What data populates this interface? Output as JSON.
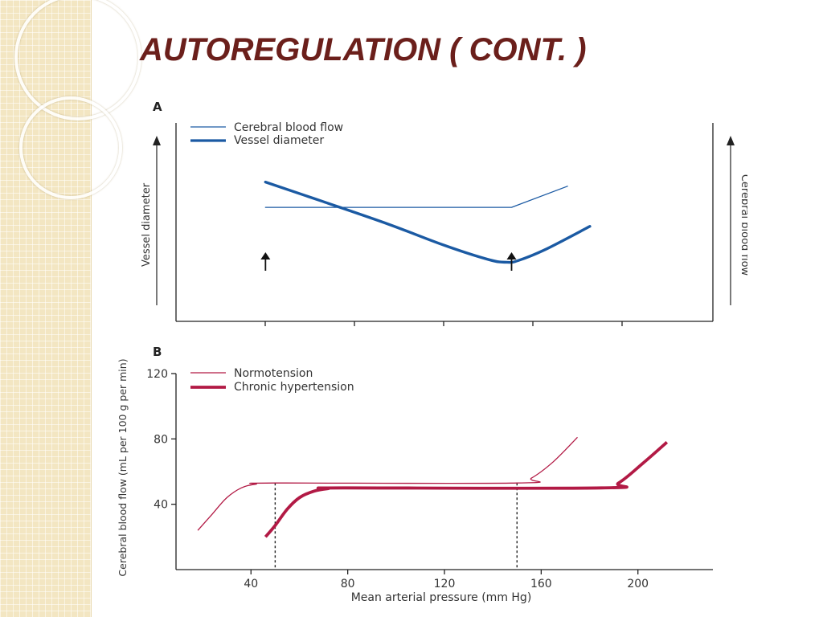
{
  "slide": {
    "title": "AUTOREGULATION ( CONT. )"
  },
  "colors": {
    "title": "#6b1f1b",
    "blue": "#1b5aa3",
    "crimson": "#b21a45",
    "axis": "#222222",
    "decor": "#f3e6c2"
  },
  "chart_data": [
    {
      "panel_label": "A",
      "type": "line",
      "left_axis_label": "Vessel diameter",
      "right_axis_label": "Cerebral blood flow",
      "x_ticks": 5,
      "series": [
        {
          "name": "Cerebral blood flow",
          "style": "thin",
          "points": [
            [
              40,
              52
            ],
            [
              150,
              52
            ],
            [
              175,
              57
            ]
          ]
        },
        {
          "name": "Vessel diameter",
          "style": "thick",
          "points": [
            [
              40,
              58
            ],
            [
              65,
              53.5
            ],
            [
              95,
              48
            ],
            [
              120,
              43
            ],
            [
              140,
              39.6
            ],
            [
              148,
              39
            ],
            [
              153,
              39.4
            ],
            [
              165,
              42
            ],
            [
              185,
              47.5
            ]
          ]
        }
      ],
      "arrow_markers_x": [
        40,
        150
      ],
      "xlim": [
        0,
        240
      ],
      "ylim": [
        25,
        72
      ]
    },
    {
      "panel_label": "B",
      "type": "line",
      "xlabel": "Mean arterial pressure (mm Hg)",
      "ylabel": "Cerebral blood flow (mL per 100 g per min)",
      "x_ticks": [
        40,
        80,
        120,
        160,
        200
      ],
      "y_ticks": [
        40,
        80,
        120
      ],
      "xlim": [
        9,
        231
      ],
      "ylim": [
        0,
        120
      ],
      "series": [
        {
          "name": "Normotension",
          "style": "thin",
          "points": [
            [
              18,
              24
            ],
            [
              24,
              34
            ],
            [
              30,
              44
            ],
            [
              36,
              50
            ],
            [
              42,
              52.3
            ],
            [
              50,
              53
            ],
            [
              150,
              53
            ],
            [
              156,
              56
            ],
            [
              165,
              66
            ],
            [
              175,
              81
            ]
          ]
        },
        {
          "name": "Chronic hypertension",
          "style": "thick",
          "points": [
            [
              46,
              20
            ],
            [
              50,
              27
            ],
            [
              55,
              37
            ],
            [
              60,
              44
            ],
            [
              66,
              48
            ],
            [
              72,
              49.6
            ],
            [
              78,
              50
            ],
            [
              185,
              50
            ],
            [
              192,
              53
            ],
            [
              202,
              65
            ],
            [
              212,
              78
            ]
          ]
        }
      ],
      "reference_lines_x": [
        50,
        150
      ]
    }
  ]
}
